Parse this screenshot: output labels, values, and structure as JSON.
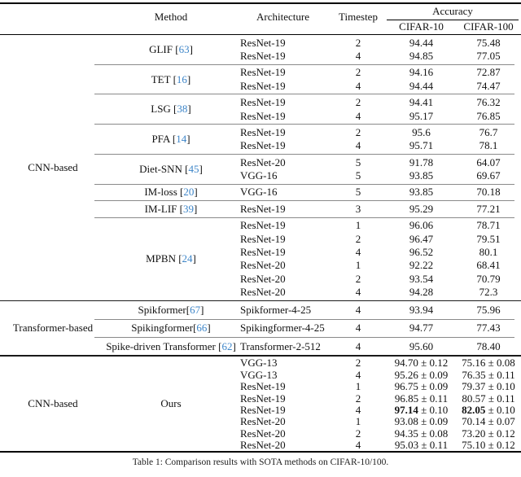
{
  "page": {
    "caption": "Table 1: Comparison results with SOTA methods on CIFAR-10/100."
  },
  "colors": {
    "citation": "#3d85c8"
  },
  "header": {
    "method": "Method",
    "architecture": "Architecture",
    "timestep": "Timestep",
    "accuracy": "Accuracy",
    "cifar10": "CIFAR-10",
    "cifar100": "CIFAR-100"
  },
  "groups": [
    {
      "label": "CNN-based",
      "methods": [
        {
          "name": "GLIF",
          "cite": "63",
          "cite_space": true,
          "rows": [
            {
              "arch": "ResNet-19",
              "t": "2",
              "c10": "94.44",
              "c100": "75.48"
            },
            {
              "arch": "ResNet-19",
              "t": "4",
              "c10": "94.85",
              "c100": "77.05"
            }
          ]
        },
        {
          "name": "TET",
          "cite": "16",
          "cite_space": true,
          "rows": [
            {
              "arch": "ResNet-19",
              "t": "2",
              "c10": "94.16",
              "c100": "72.87"
            },
            {
              "arch": "ResNet-19",
              "t": "4",
              "c10": "94.44",
              "c100": "74.47"
            }
          ]
        },
        {
          "name": "LSG",
          "cite": "38",
          "cite_space": true,
          "rows": [
            {
              "arch": "ResNet-19",
              "t": "2",
              "c10": "94.41",
              "c100": "76.32"
            },
            {
              "arch": "ResNet-19",
              "t": "4",
              "c10": "95.17",
              "c100": "76.85"
            }
          ]
        },
        {
          "name": "PFA",
          "cite": "14",
          "cite_space": true,
          "rows": [
            {
              "arch": "ResNet-19",
              "t": "2",
              "c10": "95.6",
              "c100": "76.7"
            },
            {
              "arch": "ResNet-19",
              "t": "4",
              "c10": "95.71",
              "c100": "78.1"
            }
          ]
        },
        {
          "name": "Diet-SNN",
          "cite": "45",
          "cite_space": true,
          "rows": [
            {
              "arch": "ResNet-20",
              "t": "5",
              "c10": "91.78",
              "c100": "64.07"
            },
            {
              "arch": "VGG-16",
              "t": "5",
              "c10": "93.85",
              "c100": "69.67"
            }
          ]
        },
        {
          "name": "IM-loss",
          "cite": "20",
          "cite_space": true,
          "rows": [
            {
              "arch": "VGG-16",
              "t": "5",
              "c10": "93.85",
              "c100": "70.18"
            }
          ]
        },
        {
          "name": "IM-LIF",
          "cite": "39",
          "cite_space": true,
          "rows": [
            {
              "arch": "ResNet-19",
              "t": "3",
              "c10": "95.29",
              "c100": "77.21"
            }
          ]
        },
        {
          "name": "MPBN",
          "cite": "24",
          "cite_space": true,
          "rows": [
            {
              "arch": "ResNet-19",
              "t": "1",
              "c10": "96.06",
              "c100": "78.71"
            },
            {
              "arch": "ResNet-19",
              "t": "2",
              "c10": "96.47",
              "c100": "79.51"
            },
            {
              "arch": "ResNet-19",
              "t": "4",
              "c10": "96.52",
              "c100": "80.1"
            },
            {
              "arch": "ResNet-20",
              "t": "1",
              "c10": "92.22",
              "c100": "68.41"
            },
            {
              "arch": "ResNet-20",
              "t": "2",
              "c10": "93.54",
              "c100": "70.79"
            },
            {
              "arch": "ResNet-20",
              "t": "4",
              "c10": "94.28",
              "c100": "72.3"
            }
          ]
        }
      ]
    },
    {
      "label": "Transformer-based",
      "methods": [
        {
          "name": "Spikformer",
          "cite": "67",
          "cite_space": false,
          "rows": [
            {
              "arch": "Spikformer-4-25",
              "t": "4",
              "c10": "93.94",
              "c100": "75.96"
            }
          ]
        },
        {
          "name": "Spikingformer",
          "cite": "66",
          "cite_space": false,
          "rows": [
            {
              "arch": "Spikingformer-4-25",
              "t": "4",
              "c10": "94.77",
              "c100": "77.43"
            }
          ]
        },
        {
          "name": "Spike-driven Transformer",
          "cite": "62",
          "cite_space": true,
          "rows": [
            {
              "arch": "Transformer-2-512",
              "t": "4",
              "c10": "95.60",
              "c100": "78.40"
            }
          ]
        }
      ]
    },
    {
      "label": "CNN-based",
      "methods": [
        {
          "name": "Ours",
          "cite": null,
          "cite_space": false,
          "rows": [
            {
              "arch": "VGG-13",
              "t": "2",
              "c10": "94.70",
              "c10_pm": "0.12",
              "c100": "75.16",
              "c100_pm": "0.08"
            },
            {
              "arch": "VGG-13",
              "t": "4",
              "c10": "95.26",
              "c10_pm": "0.09",
              "c100": "76.35",
              "c100_pm": "0.11"
            },
            {
              "arch": "ResNet-19",
              "t": "1",
              "c10": "96.75",
              "c10_pm": "0.09",
              "c100": "79.37",
              "c100_pm": "0.10"
            },
            {
              "arch": "ResNet-19",
              "t": "2",
              "c10": "96.85",
              "c10_pm": "0.11",
              "c100": "80.57",
              "c100_pm": "0.11"
            },
            {
              "arch": "ResNet-19",
              "t": "4",
              "c10": "97.14",
              "c10_pm": "0.10",
              "c100": "82.05",
              "c100_pm": "0.10",
              "bold": true
            },
            {
              "arch": "ResNet-20",
              "t": "1",
              "c10": "93.08",
              "c10_pm": "0.09",
              "c100": "70.14",
              "c100_pm": "0.07"
            },
            {
              "arch": "ResNet-20",
              "t": "2",
              "c10": "94.35",
              "c10_pm": "0.08",
              "c100": "73.20",
              "c100_pm": "0.12"
            },
            {
              "arch": "ResNet-20",
              "t": "4",
              "c10": "95.03",
              "c10_pm": "0.11",
              "c100": "75.10",
              "c100_pm": "0.12"
            }
          ]
        }
      ]
    }
  ]
}
